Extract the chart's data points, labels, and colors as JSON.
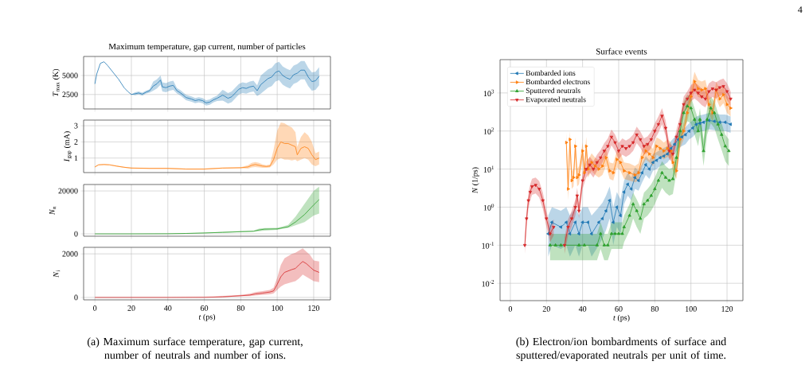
{
  "chart_data": [
    {
      "type": "line",
      "title": "Maximum temperature, gap current, number of particles",
      "ylabel": "*T*$_{max}$ (K)",
      "xlim": [
        -6.2,
        129.2
      ],
      "ylim": [
        600,
        7500
      ],
      "xticks": [
        0,
        20,
        40,
        60,
        80,
        100,
        120
      ],
      "yticks": [
        2500,
        5000
      ],
      "grid": true,
      "tick_labels": "y",
      "series": [
        {
          "color": "#1f77b4",
          "x": [
            0,
            1,
            3,
            5,
            7,
            10,
            13,
            16,
            18,
            20,
            22,
            24,
            26,
            28,
            30,
            32,
            34,
            36,
            37,
            39,
            41,
            43,
            45,
            47,
            50,
            53,
            55,
            57,
            59,
            61,
            63,
            65,
            67,
            70,
            71,
            73,
            75,
            77,
            79,
            81,
            83,
            85,
            87,
            89,
            91,
            93,
            95,
            97,
            99,
            101,
            103,
            105,
            107,
            109,
            111,
            113,
            115,
            117,
            119,
            121,
            123
          ],
          "values": [
            3900,
            5200,
            6600,
            6800,
            6300,
            5400,
            4500,
            3400,
            2900,
            2500,
            2600,
            2700,
            2550,
            2800,
            3000,
            3600,
            3900,
            4400,
            3500,
            3400,
            3600,
            3700,
            3000,
            2700,
            2100,
            1900,
            1700,
            1800,
            1700,
            1400,
            1500,
            1800,
            2000,
            2400,
            2300,
            2000,
            2200,
            2700,
            3200,
            3400,
            3300,
            3500,
            3600,
            3000,
            3800,
            4200,
            4600,
            4800,
            5400,
            5600,
            5000,
            4700,
            4500,
            5100,
            5300,
            5700,
            5700,
            4800,
            4200,
            4300,
            4900
          ],
          "lower": [
            3900,
            5200,
            6600,
            6800,
            6300,
            5400,
            4500,
            3400,
            2900,
            2500,
            2400,
            2500,
            2350,
            2600,
            2750,
            3000,
            3300,
            3800,
            2900,
            2800,
            3000,
            3100,
            2650,
            2350,
            1750,
            1550,
            1350,
            1450,
            1350,
            1050,
            1150,
            1450,
            1650,
            1700,
            1600,
            1300,
            1500,
            2000,
            2500,
            2700,
            2600,
            2800,
            2900,
            2300,
            2600,
            3000,
            3400,
            3600,
            4200,
            4400,
            3800,
            3500,
            3300,
            3900,
            4100,
            4500,
            4500,
            3600,
            3000,
            3100,
            3700
          ],
          "upper": [
            3900,
            5200,
            6600,
            6800,
            6300,
            5400,
            4500,
            3400,
            2900,
            2500,
            2800,
            2900,
            2750,
            3000,
            3200,
            4200,
            4500,
            5000,
            4100,
            4000,
            4200,
            4300,
            3350,
            3050,
            2450,
            2250,
            2050,
            2150,
            2050,
            1750,
            1850,
            2150,
            2350,
            3100,
            3000,
            2700,
            2900,
            3400,
            3900,
            4100,
            4000,
            4200,
            4300,
            3700,
            5000,
            5400,
            5800,
            6000,
            6600,
            6800,
            6200,
            5900,
            5700,
            6300,
            6500,
            6900,
            6900,
            6000,
            5400,
            5500,
            6100
          ]
        }
      ]
    },
    {
      "type": "line",
      "ylabel": "*I*$_{gap}$ (mA)",
      "xlim": [
        -6.2,
        129.2
      ],
      "ylim": [
        0.1,
        3.35
      ],
      "xticks": [
        0,
        20,
        40,
        60,
        80,
        100,
        120
      ],
      "yticks": [
        1,
        2,
        3
      ],
      "grid": true,
      "tick_labels": "y",
      "series": [
        {
          "color": "#ff7f0e",
          "x": [
            0,
            2,
            5,
            8,
            12,
            16,
            20,
            30,
            40,
            50,
            60,
            70,
            80,
            84,
            86,
            88,
            90,
            92,
            94,
            96,
            98,
            100,
            102,
            104,
            106,
            108,
            110,
            111,
            113,
            115,
            117,
            119,
            121,
            123
          ],
          "values": [
            0.45,
            0.58,
            0.6,
            0.58,
            0.5,
            0.43,
            0.38,
            0.36,
            0.36,
            0.32,
            0.32,
            0.38,
            0.4,
            0.45,
            0.55,
            0.6,
            0.55,
            0.5,
            0.48,
            0.5,
            0.9,
            1.6,
            2.0,
            1.9,
            1.9,
            1.8,
            1.7,
            1.2,
            1.6,
            1.7,
            1.6,
            1.2,
            0.9,
            1.0
          ],
          "lower": [
            0.42,
            0.55,
            0.57,
            0.55,
            0.47,
            0.4,
            0.35,
            0.33,
            0.33,
            0.29,
            0.29,
            0.35,
            0.37,
            0.35,
            0.42,
            0.45,
            0.42,
            0.4,
            0.4,
            0.42,
            0.6,
            0.9,
            1.0,
            0.9,
            0.9,
            0.85,
            0.9,
            0.8,
            0.9,
            1.0,
            0.9,
            0.6,
            0.5,
            0.6
          ],
          "upper": [
            0.48,
            0.61,
            0.63,
            0.61,
            0.53,
            0.46,
            0.41,
            0.39,
            0.39,
            0.35,
            0.35,
            0.41,
            0.43,
            0.55,
            0.7,
            0.75,
            0.7,
            0.6,
            0.56,
            0.6,
            1.5,
            2.7,
            3.2,
            3.15,
            3.0,
            2.9,
            2.6,
            1.7,
            2.3,
            2.6,
            2.4,
            2.0,
            1.3,
            1.4
          ]
        }
      ]
    },
    {
      "type": "line",
      "ylabel": "*N*$_{n}$",
      "xlim": [
        -6.2,
        129.2
      ],
      "ylim": [
        -1100,
        23000
      ],
      "xticks": [
        0,
        20,
        40,
        60,
        80,
        100,
        120
      ],
      "yticks": [
        0,
        20000
      ],
      "grid": true,
      "tick_labels": "y",
      "series": [
        {
          "color": "#2ca02c",
          "x": [
            0,
            20,
            40,
            50,
            60,
            70,
            80,
            87,
            90,
            93,
            100,
            103,
            106,
            110,
            115,
            120,
            123
          ],
          "values": [
            0,
            0,
            50,
            200,
            400,
            700,
            1000,
            1200,
            1800,
            2200,
            2300,
            2800,
            3300,
            5500,
            9000,
            13500,
            16000
          ],
          "lower": [
            0,
            0,
            0,
            100,
            250,
            500,
            800,
            1000,
            1200,
            1500,
            1900,
            2400,
            2800,
            4000,
            5500,
            8500,
            9500
          ],
          "upper": [
            0,
            0,
            100,
            350,
            600,
            900,
            1300,
            1500,
            2400,
            2700,
            2800,
            3400,
            4200,
            8000,
            14000,
            20000,
            22000
          ]
        }
      ]
    },
    {
      "type": "line",
      "ylabel": "*N*$_{i}$",
      "xlabel": "*t* (ps)",
      "xlim": [
        -6.2,
        129.2
      ],
      "ylim": [
        -110,
        2300
      ],
      "xticks": [
        0,
        20,
        40,
        60,
        80,
        100,
        120
      ],
      "yticks": [
        0,
        2000
      ],
      "grid": true,
      "annotations": [
        "(a) Maximum surface temperature, gap current, number of neutrals and number of ions."
      ],
      "series": [
        {
          "color": "#d62728",
          "x": [
            0,
            40,
            60,
            70,
            80,
            85,
            88,
            92,
            96,
            98,
            100,
            102,
            104,
            108,
            110,
            112,
            114,
            116,
            118,
            120,
            123
          ],
          "values": [
            0,
            0,
            5,
            30,
            80,
            110,
            160,
            200,
            250,
            300,
            600,
            950,
            1150,
            1280,
            1330,
            1500,
            1650,
            1550,
            1400,
            1250,
            1150
          ],
          "lower": [
            0,
            0,
            0,
            10,
            50,
            60,
            90,
            120,
            150,
            180,
            350,
            500,
            600,
            700,
            750,
            880,
            1050,
            950,
            850,
            750,
            700
          ],
          "upper": [
            0,
            0,
            10,
            60,
            120,
            170,
            250,
            290,
            350,
            450,
            900,
            1500,
            1800,
            2000,
            2050,
            2150,
            2250,
            2100,
            1950,
            1700,
            1650
          ]
        }
      ]
    },
    {
      "type": "line",
      "title": "Surface events",
      "ylabel": "*N* (1/ps)",
      "xlabel": "*t* (ps)",
      "xlim": [
        -5.7,
        128.8
      ],
      "ylim": [
        0.0035,
        7500
      ],
      "log": true,
      "xticks": [
        0,
        20,
        40,
        60,
        80,
        100,
        120
      ],
      "yticks": [
        {
          "value": 0.01,
          "label": "10$^{-2}$"
        },
        {
          "value": 0.1,
          "label": "10$^{-1}$"
        },
        {
          "value": 1,
          "label": "10$^{0}$"
        },
        {
          "value": 10,
          "label": "10$^{1}$"
        },
        {
          "value": 100,
          "label": "10$^{2}$"
        },
        {
          "value": 1000,
          "label": "10$^{3}$"
        }
      ],
      "grid": true,
      "legend": "top left",
      "marker": "triangle",
      "annotations": [
        "(b) Electron/ion bombardments of surface and sputtered/evaporated neutrals per unit of time.",
        "4"
      ],
      "series": [
        {
          "name": "Bombarded ions",
          "color": "#1f77b4",
          "x": [
            21,
            23,
            28,
            31,
            33,
            36,
            38,
            40,
            43,
            45,
            49,
            51,
            53,
            55,
            57,
            59,
            61,
            63,
            65,
            67,
            69,
            71,
            73,
            75,
            77,
            79,
            81,
            83,
            85,
            87,
            89,
            91,
            93,
            95,
            97,
            99,
            101,
            103,
            105,
            107,
            110,
            113,
            116,
            119,
            122
          ],
          "values": [
            0.2,
            0.4,
            0.3,
            0.4,
            0.2,
            0.4,
            0.2,
            0.4,
            0.4,
            0.2,
            0.4,
            0.5,
            0.8,
            1.5,
            0.4,
            1,
            0.6,
            2.5,
            4,
            3,
            6,
            5,
            8,
            13,
            10,
            15,
            17,
            20,
            22,
            25,
            35,
            45,
            60,
            70,
            80,
            100,
            120,
            150,
            160,
            170,
            190,
            180,
            170,
            170,
            150
          ],
          "lower": [
            0.05,
            0.1,
            0.08,
            0.1,
            0.05,
            0.1,
            0.05,
            0.1,
            0.1,
            0.05,
            0.1,
            0.15,
            0.25,
            0.5,
            0.1,
            0.3,
            0.2,
            1.2,
            2,
            1.5,
            3,
            2.7,
            4.5,
            7,
            5.5,
            9,
            10,
            12,
            13,
            15,
            20,
            25,
            35,
            40,
            45,
            60,
            70,
            90,
            95,
            100,
            110,
            105,
            100,
            100,
            90
          ],
          "upper": [
            0.6,
            1,
            0.8,
            1,
            0.6,
            1,
            0.6,
            1,
            1,
            0.6,
            1,
            1.3,
            2,
            3.5,
            1,
            2.5,
            1.6,
            5,
            8,
            6,
            11,
            9,
            14,
            22,
            17,
            25,
            28,
            32,
            36,
            40,
            55,
            70,
            95,
            110,
            125,
            160,
            190,
            240,
            260,
            270,
            300,
            290,
            270,
            270,
            240
          ]
        },
        {
          "name": "Bombarded electrons",
          "color": "#ff7f0e",
          "x": [
            31,
            32,
            33,
            34,
            35,
            36,
            37,
            38,
            40,
            41,
            42,
            43,
            45,
            47,
            49,
            51,
            53,
            55,
            57,
            59,
            61,
            63,
            66,
            69,
            71,
            73,
            75,
            77,
            79,
            81,
            83,
            85,
            87,
            89,
            90,
            92,
            94,
            96,
            98,
            100,
            102,
            104,
            106,
            108,
            110,
            112,
            114,
            116,
            118,
            120,
            122
          ],
          "values": [
            50,
            3,
            60,
            5,
            6,
            40,
            6,
            7,
            30,
            8,
            40,
            10,
            15,
            12,
            10,
            12,
            20,
            9,
            8,
            18,
            15,
            9,
            8,
            7,
            8,
            20,
            30,
            25,
            20,
            40,
            35,
            30,
            35,
            30,
            15,
            9,
            60,
            100,
            300,
            800,
            2000,
            1300,
            1200,
            1300,
            500,
            300,
            1200,
            700,
            900,
            500,
            400
          ],
          "lower": [
            25,
            1.5,
            30,
            3,
            3.5,
            22,
            3.5,
            4,
            18,
            5,
            22,
            6,
            9,
            7,
            6,
            7,
            12,
            5.5,
            5,
            11,
            9,
            5.5,
            5,
            4.5,
            5,
            12,
            18,
            15,
            12,
            24,
            21,
            18,
            21,
            18,
            9,
            5.5,
            35,
            60,
            180,
            480,
            1200,
            780,
            720,
            780,
            300,
            180,
            720,
            420,
            540,
            300,
            240
          ],
          "upper": [
            90,
            6,
            100,
            9,
            10,
            70,
            10,
            12,
            50,
            14,
            70,
            17,
            26,
            20,
            17,
            20,
            34,
            15,
            14,
            30,
            26,
            15,
            14,
            12,
            14,
            34,
            50,
            43,
            34,
            68,
            60,
            50,
            60,
            50,
            26,
            15,
            100,
            170,
            500,
            1400,
            3600,
            2200,
            2000,
            2200,
            850,
            500,
            2000,
            1200,
            1500,
            850,
            680
          ]
        },
        {
          "name": "Sputtered neutrals",
          "color": "#2ca02c",
          "x": [
            22,
            25,
            28,
            38,
            41,
            48,
            50,
            52,
            54,
            56,
            58,
            60,
            62,
            63,
            66,
            68,
            70,
            72,
            74,
            76,
            78,
            80,
            82,
            84,
            86,
            88,
            90,
            92,
            94,
            96,
            98,
            100,
            102,
            104,
            105,
            107,
            109,
            111,
            113,
            115,
            117,
            119,
            121
          ],
          "values": [
            0.1,
            0.1,
            0.1,
            0.1,
            0.1,
            0.1,
            0.2,
            0.1,
            0.1,
            0.2,
            0.2,
            0.2,
            0.2,
            0.3,
            0.6,
            1.2,
            0.8,
            0.5,
            1.2,
            1.5,
            2,
            3,
            5,
            8,
            6,
            5,
            5.5,
            20,
            100,
            300,
            450,
            400,
            200,
            100,
            200,
            30,
            200,
            400,
            300,
            150,
            80,
            40,
            30
          ],
          "lower": [
            0.04,
            0.04,
            0.04,
            0.04,
            0.04,
            0.04,
            0.08,
            0.04,
            0.04,
            0.08,
            0.08,
            0.08,
            0.08,
            0.12,
            0.24,
            0.5,
            0.3,
            0.2,
            0.5,
            0.6,
            0.8,
            1.2,
            2,
            3.2,
            2.4,
            2,
            2.2,
            8,
            40,
            120,
            180,
            160,
            80,
            40,
            80,
            12,
            80,
            160,
            120,
            60,
            32,
            16,
            12
          ],
          "upper": [
            0.2,
            0.2,
            0.2,
            0.2,
            0.2,
            0.2,
            0.4,
            0.2,
            0.2,
            0.4,
            0.4,
            0.4,
            0.4,
            0.6,
            1.2,
            2.4,
            1.6,
            1,
            2.4,
            3,
            4,
            6,
            10,
            16,
            12,
            10,
            11,
            40,
            200,
            600,
            900,
            800,
            400,
            200,
            400,
            60,
            400,
            800,
            600,
            300,
            160,
            80,
            60
          ]
        },
        {
          "name": "Evaporated neutrals",
          "color": "#d62728",
          "x": [
            8,
            9,
            10,
            11,
            12,
            14,
            16,
            18,
            20,
            22,
            24,
            26,
            30,
            32,
            34,
            36,
            37,
            38,
            40,
            42,
            44,
            46,
            48,
            50,
            52,
            54,
            56,
            58,
            60,
            62,
            64,
            66,
            68,
            70,
            72,
            74,
            76,
            78,
            80,
            82,
            84,
            86,
            88,
            90,
            92,
            94,
            96,
            98,
            100,
            102,
            104,
            106,
            108,
            110,
            112,
            114,
            116,
            118,
            120,
            122
          ],
          "values": [
            0.1,
            0.5,
            1.5,
            2.5,
            3.5,
            3.8,
            3,
            1.5,
            0.5,
            0.2,
            0.3,
            null,
            0.1,
            0.3,
            0.5,
            1,
            2,
            0.8,
            5,
            10,
            13,
            10,
            15,
            20,
            30,
            40,
            70,
            50,
            30,
            40,
            35,
            40,
            50,
            80,
            60,
            40,
            45,
            60,
            100,
            150,
            250,
            120,
            30,
            25,
            70,
            150,
            500,
            700,
            1000,
            1200,
            1000,
            800,
            700,
            1100,
            1300,
            1200,
            1400,
            1500,
            1100,
            700
          ],
          "lower": [
            0.06,
            0.3,
            0.9,
            1.5,
            2.1,
            2.3,
            1.8,
            0.9,
            0.3,
            0.12,
            0.18,
            null,
            0.06,
            0.18,
            0.3,
            0.6,
            1.2,
            0.5,
            3,
            6,
            8,
            6,
            9,
            12,
            18,
            24,
            42,
            30,
            18,
            24,
            21,
            24,
            30,
            48,
            36,
            24,
            27,
            36,
            60,
            90,
            150,
            72,
            18,
            15,
            42,
            90,
            300,
            420,
            600,
            720,
            600,
            480,
            420,
            660,
            780,
            720,
            840,
            900,
            660,
            420
          ],
          "upper": [
            0.16,
            0.8,
            2.4,
            4,
            5.6,
            6,
            4.8,
            2.4,
            0.8,
            0.32,
            0.48,
            null,
            0.16,
            0.48,
            0.8,
            1.6,
            3.2,
            1.3,
            8,
            16,
            21,
            16,
            24,
            32,
            48,
            64,
            110,
            80,
            48,
            64,
            56,
            64,
            80,
            130,
            96,
            64,
            72,
            96,
            160,
            240,
            400,
            190,
            48,
            40,
            110,
            240,
            800,
            1100,
            1600,
            1900,
            1600,
            1300,
            1100,
            1800,
            2100,
            1900,
            2200,
            2400,
            1800,
            1100
          ]
        }
      ]
    }
  ]
}
